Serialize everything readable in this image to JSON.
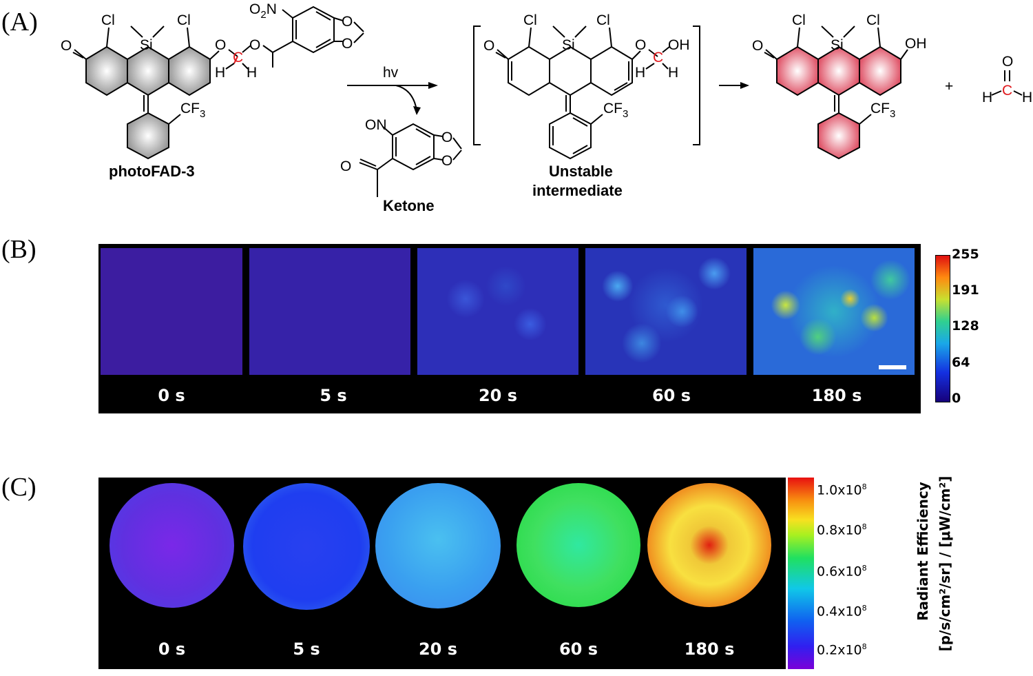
{
  "panels": {
    "a": {
      "letter": "(A)"
    },
    "b": {
      "letter": "(B)"
    },
    "c": {
      "letter": "(C)"
    }
  },
  "scheme": {
    "reactant_label": "photoFAD-3",
    "reagent": "hv",
    "byproduct_label": "Ketone",
    "intermediate_label_line1": "Unstable",
    "intermediate_label_line2": "intermediate",
    "atoms": {
      "cl": "Cl",
      "si": "Si",
      "o": "O",
      "h": "H",
      "c": "C",
      "cf3_base": "CF",
      "cf3_sub": "3",
      "oh": "OH",
      "on": "ON",
      "no2_o": "O",
      "no2_sub": "2",
      "no2_n": "N",
      "plus": "+"
    }
  },
  "panel_b": {
    "frames": [
      "0 s",
      "5 s",
      "20 s",
      "60 s",
      "180 s"
    ],
    "colorbar_ticks": [
      "255",
      "191",
      "128",
      "64",
      "0"
    ],
    "colors": {
      "cold": "#3a1a9a",
      "hot": "#ff3300"
    }
  },
  "panel_c": {
    "frames": [
      "0 s",
      "5 s",
      "20 s",
      "60 s",
      "180 s"
    ],
    "colorbar_ticks": [
      "1.0x10",
      "0.8x10",
      "0.6x10",
      "0.4x10",
      "0.2x10"
    ],
    "colorbar_exp": "8",
    "axis_title_line1": "Radiant Efficiency",
    "axis_title_line2": "[p/s/cm²/sr] / [μW/cm²]"
  }
}
